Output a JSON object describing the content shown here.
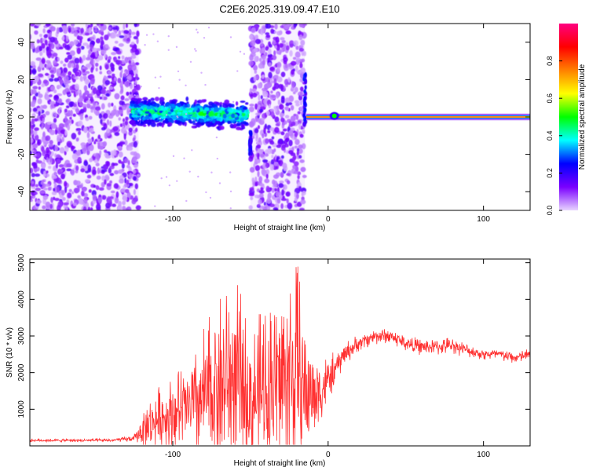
{
  "figure": {
    "title": "C2E6.2025.319.09.47.E10"
  },
  "chart_data": [
    {
      "type": "heatmap",
      "xlabel": "Height of straight line (km)",
      "ylabel": "Frequency (Hz)",
      "xlim": [
        -192,
        130
      ],
      "ylim": [
        -50,
        50
      ],
      "xticks": [
        -100,
        0,
        100
      ],
      "yticks": [
        -40,
        -20,
        0,
        20,
        40
      ],
      "colorbar": {
        "label": "Normalized spectral amplitude",
        "range": [
          0.0,
          1.0
        ],
        "ticks": [
          0.0,
          0.2,
          0.4,
          0.6,
          0.8
        ],
        "tick_labels": [
          "0.0",
          "0.2",
          "0.4",
          "0.6",
          "0.8"
        ],
        "colors": [
          "#e8d4ff",
          "#7a00ff",
          "#0000ff",
          "#00ffff",
          "#00ff00",
          "#ffff00",
          "#ff8000",
          "#ff0000",
          "#ff0080"
        ]
      },
      "regions": [
        {
          "x": [
            -192,
            -122
          ],
          "y": [
            -50,
            50
          ],
          "amplitude": 0.08
        },
        {
          "x": [
            -127,
            -52
          ],
          "y": [
            -4,
            10
          ],
          "amplitude": 0.3
        },
        {
          "x": [
            -50,
            -15
          ],
          "y": [
            -50,
            50
          ],
          "amplitude": 0.08
        },
        {
          "x": [
            -14,
            130
          ],
          "y": [
            -1,
            1
          ],
          "amplitude": 1.0
        }
      ]
    },
    {
      "type": "line",
      "xlabel": "Height of straight line (km)",
      "ylabel": "SNR (10 * v/v)",
      "xlim": [
        -192,
        130
      ],
      "ylim": [
        0,
        5100
      ],
      "xticks": [
        -100,
        0,
        100
      ],
      "yticks": [
        1000,
        2000,
        3000,
        4000,
        5000
      ],
      "series": [
        {
          "color": "#ff3030",
          "x": [
            -192,
            -180,
            -160,
            -140,
            -125,
            -118,
            -110,
            -100,
            -90,
            -80,
            -70,
            -60,
            -50,
            -40,
            -30,
            -20,
            -15,
            -10,
            -5,
            0,
            5,
            10,
            20,
            30,
            40,
            50,
            60,
            70,
            80,
            90,
            100,
            110,
            120,
            130
          ],
          "y": [
            150,
            150,
            150,
            150,
            200,
            500,
            700,
            900,
            1000,
            1300,
            1700,
            1800,
            1200,
            1600,
            1800,
            2000,
            1500,
            1400,
            1500,
            1800,
            2100,
            2500,
            2800,
            3000,
            3000,
            2800,
            2700,
            2700,
            2750,
            2600,
            2500,
            2500,
            2400,
            2500
          ],
          "amplitude": [
            40,
            40,
            40,
            40,
            80,
            500,
            800,
            1000,
            1200,
            1800,
            2500,
            2600,
            1800,
            2200,
            2800,
            3000,
            1800,
            1200,
            900,
            600,
            400,
            300,
            200,
            200,
            200,
            200,
            200,
            200,
            200,
            150,
            150,
            150,
            150,
            150
          ]
        }
      ]
    }
  ]
}
